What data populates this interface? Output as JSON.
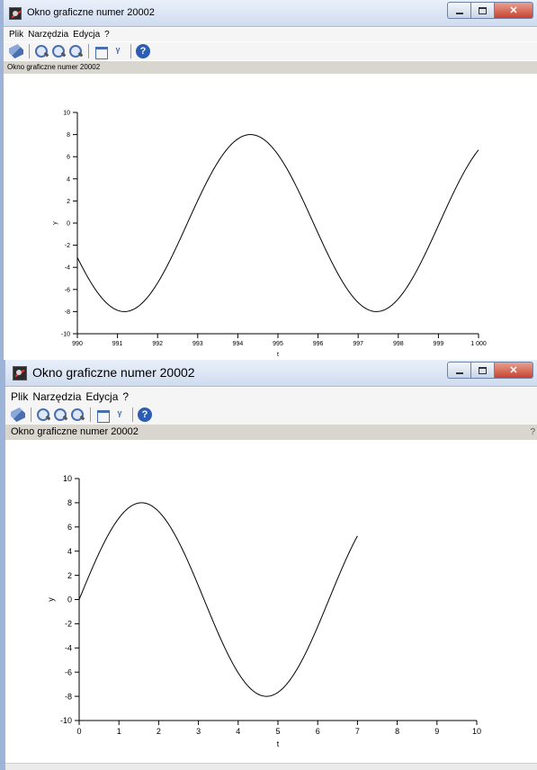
{
  "windows": [
    {
      "title": "Okno graficzne numer 20002",
      "menu": [
        "Plik",
        "Narzędzia",
        "Edycja",
        "?"
      ],
      "toolbar_icons": [
        "rotate-icon",
        "zoom-in-icon",
        "zoom-out-icon",
        "zoom-area-icon",
        "figure-window-icon",
        "datatip-icon",
        "help-icon"
      ],
      "status_text": "Okno graficzne numer 20002",
      "chart_data": {
        "type": "line",
        "xlabel": "t",
        "ylabel": "y",
        "xlim": [
          990,
          1000
        ],
        "ylim": [
          -10,
          10
        ],
        "x_ticks": [
          990,
          991,
          992,
          993,
          994,
          995,
          996,
          997,
          998,
          999,
          1000
        ],
        "x_tick_labels": [
          "990",
          "991",
          "992",
          "993",
          "994",
          "995",
          "996",
          "997",
          "998",
          "999",
          "1 000"
        ],
        "y_ticks": [
          10,
          8,
          6,
          4,
          2,
          0,
          -2,
          -4,
          -6,
          -8,
          -10
        ],
        "y_tick_labels": [
          "10",
          "8",
          "6",
          "4",
          "2",
          "0",
          "-2",
          "-4",
          "-6",
          "-8",
          "-10"
        ],
        "series": [
          {
            "function": "8*sin(t)",
            "x_start": 990,
            "x_end": 1000,
            "amplitude": 8
          }
        ],
        "grid": false
      }
    },
    {
      "title": "Okno graficzne numer 20002",
      "menu": [
        "Plik",
        "Narzędzia",
        "Edycja",
        "?"
      ],
      "toolbar_icons": [
        "rotate-icon",
        "zoom-in-icon",
        "zoom-out-icon",
        "zoom-area-icon",
        "figure-window-icon",
        "datatip-icon",
        "help-icon"
      ],
      "status_text": "Okno graficzne numer 20002",
      "status_extra": "?",
      "chart_data": {
        "type": "line",
        "xlabel": "t",
        "ylabel": "y",
        "xlim": [
          0,
          10
        ],
        "ylim": [
          -10,
          10
        ],
        "x_ticks": [
          0,
          1,
          2,
          3,
          4,
          5,
          6,
          7,
          8,
          9,
          10
        ],
        "x_tick_labels": [
          "0",
          "1",
          "2",
          "3",
          "4",
          "5",
          "6",
          "7",
          "8",
          "9",
          "10"
        ],
        "y_ticks": [
          10,
          8,
          6,
          4,
          2,
          0,
          -2,
          -4,
          -6,
          -8,
          -10
        ],
        "y_tick_labels": [
          "10",
          "8",
          "6",
          "4",
          "2",
          "0",
          "-2",
          "-4",
          "-6",
          "-8",
          "-10"
        ],
        "series": [
          {
            "function": "8*sin(t)",
            "x_start": 0,
            "x_end": 7,
            "amplitude": 8
          }
        ],
        "grid": false
      }
    }
  ]
}
